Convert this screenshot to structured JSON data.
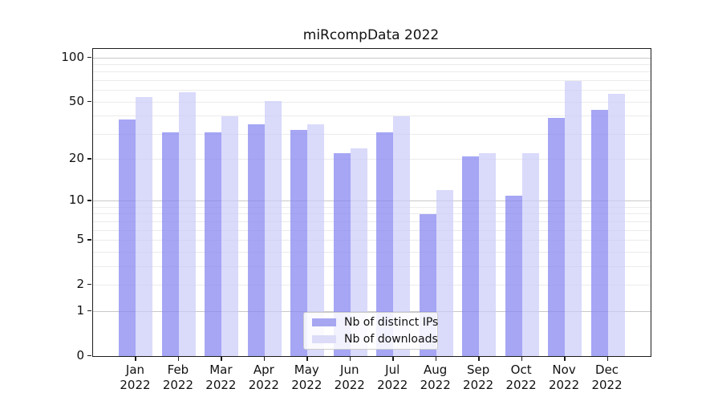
{
  "title": "miRcompData 2022",
  "colors": {
    "ips_bar": "rgba(136,136,242,0.75)",
    "downloads_bar": "rgba(202,202,250,0.70)",
    "ips_swatch": "#a6a6f1",
    "downloads_swatch": "#dcdcf8",
    "grid_minor": "#ebebeb",
    "grid_major": "#c8c8c8",
    "axis": "#1c1c1c",
    "text": "#111111"
  },
  "legend": {
    "items": [
      {
        "label": "Nb of distinct IPs"
      },
      {
        "label": "Nb of downloads"
      }
    ]
  },
  "chart_data": {
    "type": "bar",
    "title": "miRcompData 2022",
    "scale": "log1p",
    "grid": true,
    "legend_position": "lower center",
    "categories": [
      "Jan",
      "Feb",
      "Mar",
      "Apr",
      "May",
      "Jun",
      "Jul",
      "Aug",
      "Sep",
      "Oct",
      "Nov",
      "Dec"
    ],
    "category_year": "2022",
    "series": [
      {
        "name": "Nb of distinct IPs",
        "values": [
          38,
          31,
          31,
          35,
          32,
          22,
          31,
          8,
          21,
          11,
          39,
          44
        ]
      },
      {
        "name": "Nb of downloads",
        "values": [
          54,
          58,
          40,
          51,
          35,
          24,
          40,
          12,
          22,
          22,
          70,
          57
        ]
      }
    ],
    "xlabel": "",
    "ylabel": "",
    "ylim": [
      0,
      115
    ],
    "yticks": [
      0,
      1,
      2,
      5,
      10,
      20,
      50,
      100
    ],
    "major_gridlines": [
      1,
      10,
      100
    ],
    "minor_gridlines": [
      2,
      3,
      4,
      5,
      6,
      7,
      8,
      9,
      20,
      30,
      40,
      50,
      60,
      70,
      80,
      90
    ]
  }
}
